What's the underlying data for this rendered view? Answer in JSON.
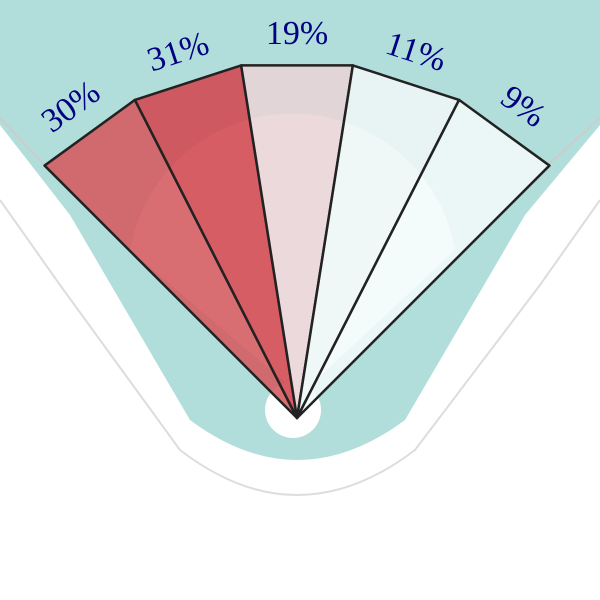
{
  "chart_data": {
    "type": "spray",
    "values": [
      30,
      31,
      19,
      11,
      9
    ],
    "value_labels": [
      "30%",
      "31%",
      "19%",
      "11%",
      "9%"
    ],
    "colors": [
      "#d45a5f",
      "#d2474e",
      "#e8d4d7",
      "#eef7f6",
      "#f3fafa"
    ],
    "label_color": "#000080"
  }
}
